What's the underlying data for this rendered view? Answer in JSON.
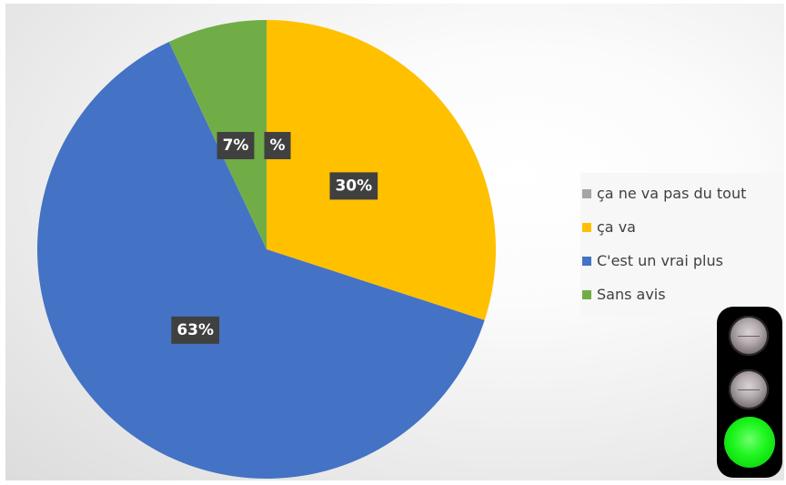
{
  "chart_data": {
    "type": "pie",
    "title": "",
    "slices": [
      {
        "label": "ça ne va pas du tout",
        "value": 0,
        "display": "%",
        "color": "#a5a5a5"
      },
      {
        "label": "ça va",
        "value": 30,
        "display": "30%",
        "color": "#ffc000"
      },
      {
        "label": "C'est un vrai plus",
        "value": 63,
        "display": "63%",
        "color": "#4472c4"
      },
      {
        "label": "Sans avis",
        "value": 7,
        "display": "7%",
        "color": "#70ad47"
      }
    ],
    "legend_position": "right",
    "start_angle_deg": 0,
    "direction": "clockwise",
    "data_label_background": "#404040"
  },
  "indicator": {
    "type": "traffic-light",
    "active": "green",
    "colors": {
      "active": "#19f519",
      "housing": "#000000"
    }
  }
}
